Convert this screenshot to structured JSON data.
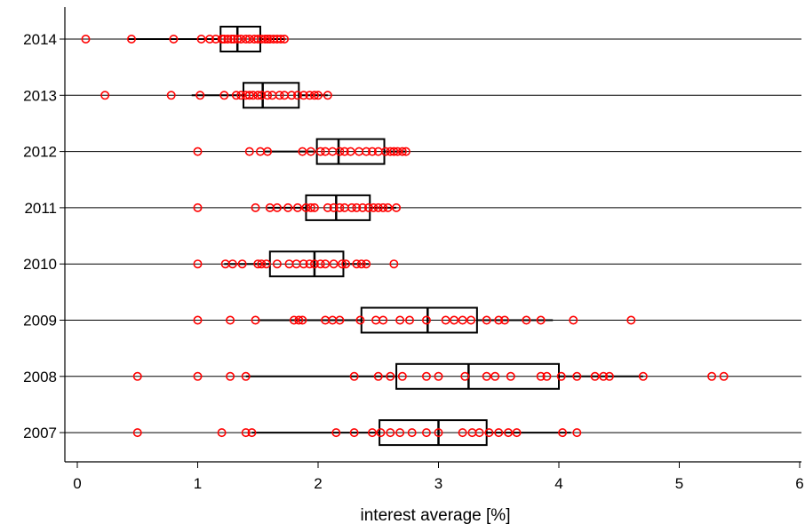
{
  "chart_data": {
    "type": "boxplot",
    "orientation": "horizontal",
    "xlabel": "interest average [%]",
    "ylabel": "",
    "xlim": [
      -0.1,
      6.05
    ],
    "xticks": [
      "0",
      "1",
      "2",
      "3",
      "4",
      "5",
      "6"
    ],
    "grid": "horizontal reference lines at each category",
    "categories": [
      "2014",
      "2013",
      "2012",
      "2011",
      "2010",
      "2009",
      "2008",
      "2007"
    ],
    "series": [
      {
        "category": "2014",
        "whisker_low": 0.42,
        "q1": 1.19,
        "median": 1.33,
        "q3": 1.52,
        "whisker_high": 1.73,
        "points": [
          0.07,
          0.45,
          0.8,
          1.03,
          1.1,
          1.15,
          1.2,
          1.22,
          1.25,
          1.28,
          1.3,
          1.33,
          1.36,
          1.4,
          1.43,
          1.47,
          1.5,
          1.53,
          1.56,
          1.58,
          1.6,
          1.63,
          1.66,
          1.69,
          1.72
        ]
      },
      {
        "category": "2013",
        "whisker_low": 0.95,
        "q1": 1.38,
        "median": 1.54,
        "q3": 1.84,
        "whisker_high": 2.08,
        "points": [
          0.23,
          0.78,
          1.02,
          1.22,
          1.32,
          1.36,
          1.4,
          1.43,
          1.46,
          1.5,
          1.53,
          1.58,
          1.62,
          1.68,
          1.72,
          1.78,
          1.83,
          1.88,
          1.93,
          1.97,
          2.0,
          2.08
        ]
      },
      {
        "category": "2012",
        "whisker_low": 1.55,
        "q1": 1.99,
        "median": 2.17,
        "q3": 2.55,
        "whisker_high": 2.73,
        "points": [
          1.0,
          1.43,
          1.52,
          1.58,
          1.87,
          1.94,
          2.02,
          2.06,
          2.12,
          2.18,
          2.22,
          2.27,
          2.34,
          2.4,
          2.45,
          2.5,
          2.56,
          2.6,
          2.63,
          2.66,
          2.7,
          2.73
        ]
      },
      {
        "category": "2011",
        "whisker_low": 1.58,
        "q1": 1.9,
        "median": 2.15,
        "q3": 2.43,
        "whisker_high": 2.65,
        "points": [
          1.0,
          1.48,
          1.6,
          1.66,
          1.75,
          1.83,
          1.9,
          1.94,
          1.97,
          2.08,
          2.13,
          2.18,
          2.22,
          2.28,
          2.32,
          2.37,
          2.42,
          2.46,
          2.5,
          2.54,
          2.58,
          2.65
        ]
      },
      {
        "category": "2010",
        "whisker_low": 1.22,
        "q1": 1.6,
        "median": 1.97,
        "q3": 2.21,
        "whisker_high": 2.42,
        "points": [
          1.0,
          1.23,
          1.29,
          1.37,
          1.5,
          1.53,
          1.57,
          1.66,
          1.76,
          1.82,
          1.88,
          1.93,
          1.97,
          2.02,
          2.06,
          2.13,
          2.2,
          2.23,
          2.32,
          2.36,
          2.4,
          2.63
        ]
      },
      {
        "category": "2009",
        "whisker_low": 1.5,
        "q1": 2.36,
        "median": 2.91,
        "q3": 3.32,
        "whisker_high": 3.95,
        "points": [
          1.0,
          1.27,
          1.48,
          1.8,
          1.84,
          1.87,
          2.06,
          2.12,
          2.18,
          2.35,
          2.48,
          2.54,
          2.68,
          2.76,
          2.9,
          3.06,
          3.13,
          3.2,
          3.27,
          3.4,
          3.5,
          3.55,
          3.73,
          3.85,
          4.12,
          4.6
        ]
      },
      {
        "category": "2008",
        "whisker_low": 1.4,
        "q1": 2.65,
        "median": 3.25,
        "q3": 4.0,
        "whisker_high": 4.7,
        "points": [
          0.5,
          1.0,
          1.27,
          1.4,
          2.3,
          2.5,
          2.6,
          2.7,
          2.9,
          3.0,
          3.22,
          3.4,
          3.47,
          3.6,
          3.85,
          3.9,
          4.02,
          4.15,
          4.3,
          4.37,
          4.42,
          4.7,
          5.27,
          5.37
        ]
      },
      {
        "category": "2007",
        "whisker_low": 1.45,
        "q1": 2.51,
        "median": 3.0,
        "q3": 3.4,
        "whisker_high": 4.1,
        "points": [
          0.5,
          1.2,
          1.4,
          1.45,
          2.15,
          2.3,
          2.45,
          2.52,
          2.6,
          2.68,
          2.78,
          2.9,
          3.0,
          3.2,
          3.28,
          3.34,
          3.42,
          3.5,
          3.58,
          3.65,
          4.03,
          4.15
        ]
      }
    ]
  },
  "colors": {
    "point_color": "#ff0000",
    "box_color": "#000000",
    "axis_color": "#000000",
    "background": "#ffffff"
  }
}
